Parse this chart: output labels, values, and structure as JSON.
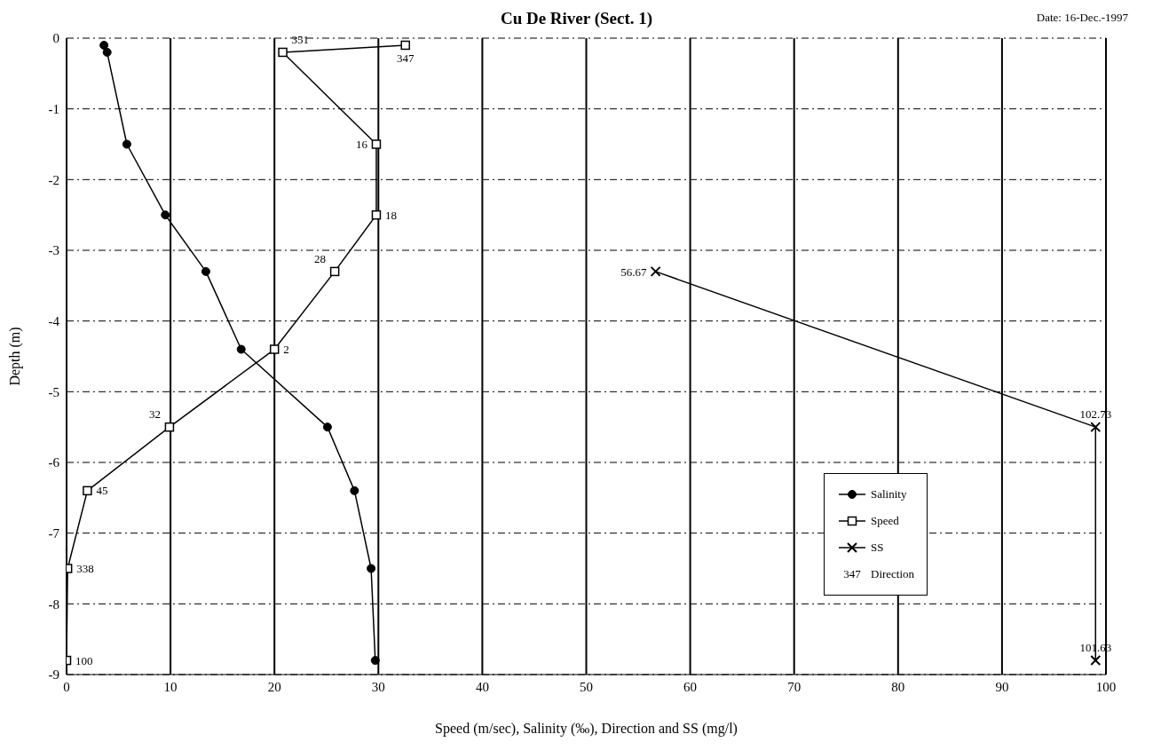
{
  "chart_data": {
    "type": "line",
    "title": "Cu De River (Sect. 1)",
    "xlabel": "Speed (m/sec), Salinity (‰), Direction and SS (mg/l)",
    "ylabel": "Depth (m)",
    "xlim": [
      0,
      100
    ],
    "xticks": [
      0,
      10,
      20,
      30,
      40,
      50,
      60,
      70,
      80,
      90,
      100
    ],
    "ylim": [
      -9,
      0
    ],
    "yticks": [
      0,
      -1,
      -2,
      -3,
      -4,
      -5,
      -6,
      -7,
      -8,
      -9
    ],
    "grid": true,
    "legend": "bottom right",
    "series": [
      {
        "name": "Salinity",
        "color": "#000000",
        "marker": "circle",
        "x": [
          3.6,
          3.9,
          5.8,
          9.5,
          13.4,
          16.8,
          25.1,
          27.7,
          29.3,
          29.7
        ],
        "values": [
          -0.1,
          -0.2,
          -1.5,
          -2.5,
          -3.3,
          -4.4,
          -5.5,
          -6.4,
          -7.5,
          -8.8
        ]
      },
      {
        "name": "Speed",
        "color": "#000000",
        "marker": "square",
        "x": [
          32.6,
          20.8,
          29.8,
          29.8,
          25.8,
          20.0,
          9.9,
          2.0,
          0.1,
          0.0
        ],
        "values": [
          -0.1,
          -0.2,
          -1.5,
          -2.5,
          -3.3,
          -4.4,
          -5.5,
          -6.4,
          -7.5,
          -8.8
        ]
      },
      {
        "name": "SS",
        "color": "#000000",
        "marker": "cross",
        "x": [
          56.67,
          99,
          99
        ],
        "values": [
          -3.3,
          -5.5,
          -8.8
        ]
      }
    ],
    "annotations": [
      "Date: 16-Dec.-1997",
      "Direction",
      {
        "text": "347",
        "x": 32.6,
        "y": -0.1
      },
      {
        "text": "351",
        "x": 20.8,
        "y": -0.2
      },
      {
        "text": "16",
        "x": 29.8,
        "y": -1.5
      },
      {
        "text": "18",
        "x": 29.8,
        "y": -2.5
      },
      {
        "text": "28",
        "x": 25.8,
        "y": -3.3
      },
      {
        "text": "2",
        "x": 20.0,
        "y": -4.4
      },
      {
        "text": "32",
        "x": 9.9,
        "y": -5.5
      },
      {
        "text": "45",
        "x": 2.0,
        "y": -6.4
      },
      {
        "text": "338",
        "x": 0.1,
        "y": -7.5
      },
      {
        "text": "100",
        "x": 0.0,
        "y": -8.8
      },
      {
        "text": "56.67",
        "x": 56.67,
        "y": -3.3
      },
      {
        "text": "102.73",
        "x": 99,
        "y": -5.5
      },
      {
        "text": "101.63",
        "x": 99,
        "y": -8.8
      }
    ]
  }
}
